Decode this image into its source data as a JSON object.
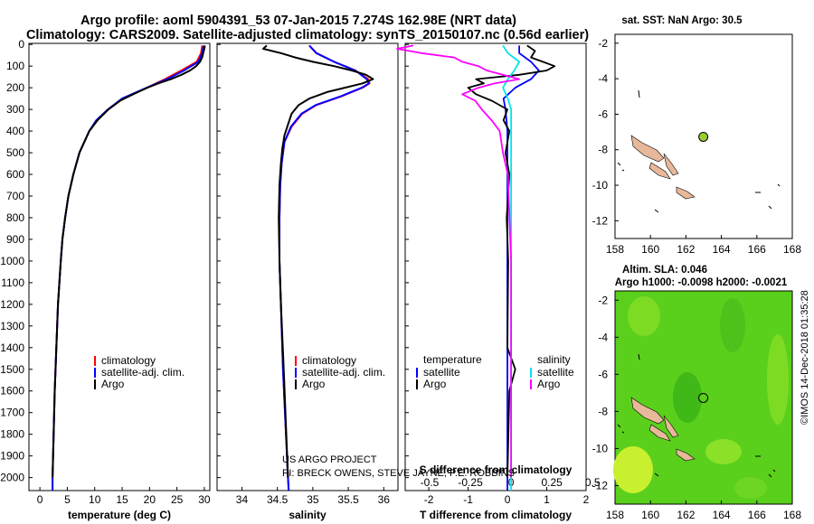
{
  "header": {
    "title_line1": "Argo profile: aoml 5904391_53 07-Jan-2015 7.274S 162.98E (NRT data)",
    "title_line2": "Climatology: CARS2009. Satellite-adjusted climatology: synTS_20150107.nc (0.56d earlier)"
  },
  "colors": {
    "climatology": "#ff0000",
    "satellite": "#0000ff",
    "argo": "#000000",
    "satellite_salinity": "#00e5ee",
    "argo_salinity": "#ff00ff",
    "land": "#e8b89a",
    "ocean_green": "#5ad01c",
    "marker": "#9acd32"
  },
  "chart_data": [
    {
      "type": "line",
      "id": "temperature",
      "xlabel": "temperature (deg C)",
      "ylabel": "",
      "xlim": [
        -2,
        31
      ],
      "ylim": [
        2060,
        -5
      ],
      "xticks": [
        0,
        5,
        10,
        15,
        20,
        25,
        30
      ],
      "yticks": [
        0,
        100,
        200,
        300,
        400,
        500,
        600,
        700,
        800,
        900,
        1000,
        1100,
        1200,
        1300,
        1400,
        1500,
        1600,
        1700,
        1800,
        1900,
        2000
      ],
      "legend": [
        "climatology",
        "satellite-adj. clim.",
        "Argo"
      ],
      "series": [
        {
          "name": "climatology",
          "depth": [
            5,
            40,
            80,
            120,
            160,
            200,
            250,
            300,
            350,
            400,
            500,
            600,
            700,
            800,
            900,
            1000,
            1200,
            1400,
            1600,
            1800,
            2000,
            2060
          ],
          "values": [
            29.6,
            29.4,
            28.6,
            25.8,
            22.8,
            19.5,
            15.2,
            12.5,
            10.4,
            9.0,
            7.2,
            6.1,
            5.2,
            4.6,
            4.1,
            3.8,
            3.3,
            3.0,
            2.7,
            2.5,
            2.3,
            2.3
          ]
        },
        {
          "name": "satellite-adj. clim.",
          "depth": [
            5,
            40,
            80,
            120,
            160,
            200,
            250,
            300,
            350,
            400,
            500,
            600,
            700,
            800,
            900,
            1000,
            1200,
            1400,
            1600,
            1800,
            2000,
            2060
          ],
          "values": [
            29.9,
            29.6,
            28.9,
            26.3,
            23.2,
            19.5,
            15.0,
            12.4,
            10.3,
            9.0,
            7.2,
            6.1,
            5.2,
            4.6,
            4.1,
            3.8,
            3.3,
            3.0,
            2.7,
            2.5,
            2.3,
            2.3
          ]
        },
        {
          "name": "Argo",
          "depth": [
            5,
            20,
            40,
            60,
            80,
            100,
            120,
            140,
            160,
            180,
            200,
            230,
            260,
            300,
            350,
            400,
            500,
            600,
            700,
            800,
            900,
            1000,
            1200,
            1400,
            1600,
            1800,
            2000
          ],
          "values": [
            30.1,
            30.0,
            29.8,
            29.6,
            29.2,
            28.5,
            27.4,
            25.8,
            23.9,
            21.6,
            19.6,
            17.0,
            14.6,
            12.5,
            10.5,
            9.0,
            7.2,
            6.1,
            5.2,
            4.6,
            4.1,
            3.8,
            3.3,
            3.0,
            2.7,
            2.5,
            2.3
          ]
        }
      ]
    },
    {
      "type": "line",
      "id": "salinity",
      "xlabel": "salinity",
      "ylabel": "",
      "xlim": [
        33.65,
        36.2
      ],
      "ylim": [
        2060,
        -5
      ],
      "xticks": [
        34,
        34.5,
        35,
        35.5,
        36
      ],
      "legend": [
        "climatology",
        "satellite-adj. clim.",
        "Argo"
      ],
      "series": [
        {
          "name": "climatology",
          "depth": [
            5,
            40,
            80,
            120,
            160,
            180,
            200,
            240,
            280,
            320,
            380,
            450,
            550,
            650,
            800,
            1000,
            1200,
            1500,
            2000,
            2060
          ],
          "values": [
            34.95,
            35.05,
            35.3,
            35.6,
            35.78,
            35.8,
            35.7,
            35.4,
            35.05,
            34.85,
            34.7,
            34.6,
            34.56,
            34.54,
            34.53,
            34.53,
            34.55,
            34.58,
            34.65,
            34.66
          ]
        },
        {
          "name": "satellite-adj. clim.",
          "depth": [
            5,
            40,
            80,
            120,
            160,
            180,
            200,
            240,
            280,
            320,
            380,
            450,
            550,
            650,
            800,
            1000,
            1200,
            1500,
            2000,
            2060
          ],
          "values": [
            34.95,
            35.05,
            35.3,
            35.6,
            35.76,
            35.79,
            35.69,
            35.39,
            35.04,
            34.84,
            34.69,
            34.6,
            34.56,
            34.54,
            34.53,
            34.53,
            34.55,
            34.58,
            34.65,
            34.66
          ]
        },
        {
          "name": "Argo",
          "depth": [
            5,
            20,
            40,
            60,
            80,
            100,
            120,
            140,
            160,
            180,
            200,
            220,
            250,
            280,
            320,
            370,
            420,
            480,
            550,
            650,
            800,
            1000,
            1200,
            1500,
            2000
          ],
          "values": [
            34.35,
            34.3,
            34.55,
            34.75,
            35.0,
            35.3,
            35.55,
            35.75,
            35.85,
            35.7,
            35.45,
            35.2,
            34.95,
            34.8,
            34.7,
            34.65,
            34.6,
            34.57,
            34.55,
            34.53,
            34.52,
            34.53,
            34.55,
            34.59,
            34.65
          ]
        }
      ]
    },
    {
      "type": "line",
      "id": "difference",
      "xlabel": "T difference from climatology",
      "xlabel_top": "S difference from climatology",
      "xlim": [
        -2.6,
        2.0
      ],
      "ylim": [
        2060,
        -5
      ],
      "xticks": [
        -2,
        -1,
        0,
        1,
        2
      ],
      "xticks_top": [
        -0.5,
        -0.25,
        0,
        0.25,
        0.5
      ],
      "legend_temperature": {
        "heading": "temperature",
        "items": [
          "satellite",
          "Argo"
        ]
      },
      "legend_salinity": {
        "heading": "salinity",
        "items": [
          "satellite",
          "Argo"
        ]
      },
      "series": [
        {
          "name": "T satellite",
          "depth": [
            5,
            40,
            80,
            120,
            160,
            200,
            250,
            300,
            400,
            600,
            1000,
            1500,
            2060
          ],
          "values": [
            0.3,
            0.3,
            0.6,
            0.8,
            0.6,
            0.2,
            -0.1,
            -0.05,
            0,
            0,
            0,
            0,
            0
          ]
        },
        {
          "name": "T Argo",
          "depth": [
            5,
            30,
            60,
            80,
            100,
            120,
            140,
            160,
            180,
            200,
            230,
            260,
            300,
            350,
            400,
            500,
            600,
            800,
            1000,
            1400,
            1500,
            1600,
            2000
          ],
          "values": [
            0.5,
            0.7,
            0.6,
            0.9,
            1.2,
            1.0,
            0.3,
            -0.8,
            -0.6,
            -1.0,
            -0.8,
            -0.4,
            0.0,
            -0.1,
            0.05,
            -0.05,
            0.05,
            -0.02,
            0.02,
            0.0,
            0.2,
            0.05,
            0.0
          ]
        },
        {
          "name": "S satellite",
          "depth": [
            5,
            40,
            80,
            120,
            160,
            200,
            250,
            300,
            400,
            600,
            1000,
            1500,
            2060
          ],
          "values": [
            -0.05,
            -0.02,
            0.05,
            0.02,
            -0.02,
            -0.05,
            -0.02,
            0,
            0,
            0,
            0,
            0,
            0
          ]
        },
        {
          "name": "S Argo",
          "depth": [
            5,
            20,
            40,
            60,
            80,
            100,
            120,
            140,
            160,
            180,
            200,
            230,
            260,
            300,
            350,
            400,
            500,
            600,
            800,
            1000,
            1500,
            2000
          ],
          "values": [
            -0.6,
            -0.7,
            -0.55,
            -0.35,
            -0.3,
            -0.2,
            -0.15,
            -0.05,
            0.05,
            -0.1,
            -0.2,
            -0.3,
            -0.22,
            -0.18,
            -0.12,
            -0.07,
            -0.05,
            -0.02,
            -0.01,
            0,
            0,
            0
          ]
        }
      ]
    },
    {
      "type": "map",
      "id": "sst_map",
      "title": "sat. SST: NaN Argo: 30.5",
      "xlim": [
        158,
        168
      ],
      "ylim": [
        -13,
        -1.5
      ],
      "xticks": [
        158,
        160,
        162,
        164,
        166,
        168
      ],
      "yticks": [
        -2,
        -4,
        -6,
        -8,
        -10,
        -12
      ],
      "marker": {
        "lon": 162.98,
        "lat": -7.274
      }
    },
    {
      "type": "map",
      "id": "sla_map",
      "title": "Altim. SLA: 0.046",
      "subtitle": "Argo h1000: -0.0098 h2000: -0.0021",
      "xlim": [
        158,
        168
      ],
      "ylim": [
        -13,
        -1.5
      ],
      "xticks": [
        158,
        160,
        162,
        164,
        166,
        168
      ],
      "yticks": [
        -2,
        -4,
        -6,
        -8,
        -10,
        -12
      ],
      "marker": {
        "lon": 162.98,
        "lat": -7.274
      }
    }
  ],
  "credits": {
    "line1": "US ARGO PROJECT",
    "line2": "PI: BRECK OWENS, STEVE JAYNE, P.E. ROBBINS"
  },
  "footer_vertical": "©IMOS 14-Dec-2018 01:35:28"
}
